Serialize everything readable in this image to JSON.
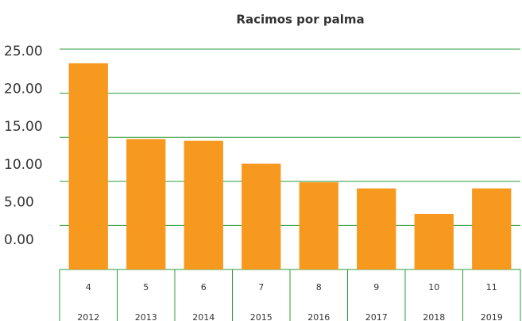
{
  "chart_data": {
    "type": "bar",
    "title": "Racimos por palma",
    "categories": [
      "2012",
      "2013",
      "2014",
      "2015",
      "2016",
      "2017",
      "2018",
      "2019"
    ],
    "sublabels": [
      "4",
      "5",
      "6",
      "7",
      "8",
      "9",
      "10",
      "11"
    ],
    "values": [
      23.4,
      14.8,
      14.6,
      12.0,
      9.9,
      9.2,
      6.3,
      9.2
    ],
    "color": "#f7981f",
    "ylim": [
      0,
      25
    ],
    "yticks": [
      {
        "value": 25,
        "label": "25.00"
      },
      {
        "value": 20,
        "label": "20.00"
      },
      {
        "value": 15,
        "label": "15.00"
      },
      {
        "value": 10,
        "label": "10.00"
      },
      {
        "value": 5,
        "label": "5.00"
      },
      {
        "value": 0,
        "label": "0.00"
      }
    ],
    "grid": true
  }
}
